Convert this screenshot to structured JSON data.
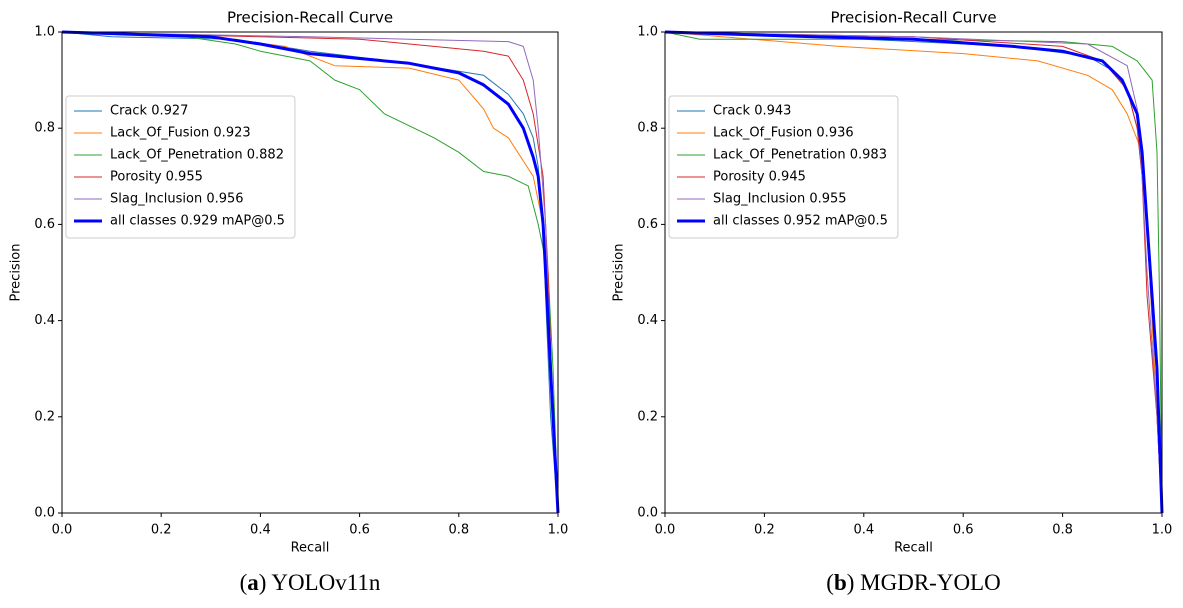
{
  "chart_data": [
    {
      "type": "line",
      "title": "Precision-Recall Curve",
      "x_label": "Recall",
      "y_label": "Precision",
      "caption": [
        "(",
        "a",
        ") YOLOv11n"
      ],
      "xlim": [
        0,
        1
      ],
      "ylim": [
        0,
        1
      ],
      "xticks": [
        {
          "value": 0,
          "label": "0.0"
        },
        0.2,
        0.4,
        0.6,
        0.8,
        {
          "value": 1,
          "label": "1.0"
        }
      ],
      "yticks": [
        {
          "value": 0,
          "label": "0.0"
        },
        0.2,
        0.4,
        0.6,
        0.8,
        {
          "value": 1,
          "label": "1.0"
        }
      ],
      "legend": "upper left",
      "series": [
        {
          "name": "Crack 0.927",
          "color": "#1f77b4",
          "width": 1,
          "x": [
            0,
            0.1,
            0.35,
            0.5,
            0.7,
            0.85,
            0.9,
            0.93,
            0.95,
            0.96,
            0.97,
            0.975,
            0.985,
            1.0
          ],
          "values": [
            1,
            0.99,
            0.985,
            0.96,
            0.935,
            0.91,
            0.87,
            0.83,
            0.78,
            0.72,
            0.6,
            0.45,
            0.2,
            0
          ]
        },
        {
          "name": "Lack_Of_Fusion 0.923",
          "color": "#ff7f0e",
          "width": 1,
          "x": [
            0,
            0.3,
            0.45,
            0.5,
            0.55,
            0.7,
            0.8,
            0.85,
            0.87,
            0.9,
            0.95,
            0.97,
            0.98,
            0.99,
            1.0
          ],
          "values": [
            1,
            0.99,
            0.97,
            0.95,
            0.93,
            0.925,
            0.9,
            0.84,
            0.8,
            0.78,
            0.7,
            0.6,
            0.4,
            0.2,
            0
          ]
        },
        {
          "name": "Lack_Of_Penetration 0.882",
          "color": "#2ca02c",
          "width": 1,
          "x": [
            0,
            0.25,
            0.35,
            0.4,
            0.5,
            0.55,
            0.6,
            0.65,
            0.75,
            0.8,
            0.85,
            0.9,
            0.94,
            0.96,
            0.98,
            0.99,
            1.0
          ],
          "values": [
            1,
            0.99,
            0.975,
            0.96,
            0.94,
            0.9,
            0.88,
            0.83,
            0.78,
            0.75,
            0.71,
            0.7,
            0.68,
            0.6,
            0.5,
            0.3,
            0
          ]
        },
        {
          "name": "Porosity 0.955",
          "color": "#d62728",
          "width": 1,
          "x": [
            0,
            0.4,
            0.6,
            0.75,
            0.85,
            0.9,
            0.93,
            0.95,
            0.97,
            0.98,
            0.99,
            1.0
          ],
          "values": [
            1,
            0.99,
            0.985,
            0.97,
            0.96,
            0.95,
            0.9,
            0.83,
            0.7,
            0.5,
            0.2,
            0
          ]
        },
        {
          "name": "Slag_Inclusion 0.956",
          "color": "#9467bd",
          "width": 1,
          "x": [
            0,
            0.5,
            0.7,
            0.9,
            0.93,
            0.95,
            0.96,
            0.975,
            0.985,
            1.0
          ],
          "values": [
            1,
            0.99,
            0.985,
            0.98,
            0.97,
            0.9,
            0.8,
            0.6,
            0.3,
            0
          ]
        },
        {
          "name": "all classes 0.929 mAP@0.5",
          "color": "#0000ff",
          "width": 3,
          "x": [
            0,
            0.3,
            0.4,
            0.5,
            0.6,
            0.7,
            0.8,
            0.85,
            0.9,
            0.93,
            0.95,
            0.96,
            0.97,
            0.98,
            0.99,
            1.0
          ],
          "values": [
            1,
            0.99,
            0.975,
            0.955,
            0.945,
            0.935,
            0.915,
            0.89,
            0.85,
            0.8,
            0.74,
            0.7,
            0.6,
            0.4,
            0.2,
            0
          ]
        }
      ]
    },
    {
      "type": "line",
      "title": "Precision-Recall Curve",
      "x_label": "Recall",
      "y_label": "Precision",
      "caption": [
        "(",
        "b",
        ") MGDR-YOLO"
      ],
      "xlim": [
        0,
        1
      ],
      "ylim": [
        0,
        1
      ],
      "xticks": [
        {
          "value": 0,
          "label": "0.0"
        },
        0.2,
        0.4,
        0.6,
        0.8,
        {
          "value": 1,
          "label": "1.0"
        }
      ],
      "yticks": [
        {
          "value": 0,
          "label": "0.0"
        },
        0.2,
        0.4,
        0.6,
        0.8,
        {
          "value": 1,
          "label": "1.0"
        }
      ],
      "legend": "upper left",
      "series": [
        {
          "name": "Crack 0.943",
          "color": "#1f77b4",
          "width": 1,
          "x": [
            0,
            0.4,
            0.7,
            0.85,
            0.9,
            0.93,
            0.95,
            0.97,
            0.98,
            1.0
          ],
          "values": [
            1,
            0.985,
            0.97,
            0.95,
            0.92,
            0.88,
            0.8,
            0.6,
            0.4,
            0
          ]
        },
        {
          "name": "Lack_Of_Fusion 0.936",
          "color": "#ff7f0e",
          "width": 1,
          "x": [
            0,
            0.35,
            0.6,
            0.75,
            0.85,
            0.9,
            0.93,
            0.96,
            0.97,
            0.98,
            1.0
          ],
          "values": [
            1,
            0.97,
            0.955,
            0.94,
            0.91,
            0.88,
            0.83,
            0.75,
            0.6,
            0.4,
            0
          ]
        },
        {
          "name": "Lack_Of_Penetration 0.983",
          "color": "#2ca02c",
          "width": 1,
          "x": [
            0,
            0.07,
            0.5,
            0.8,
            0.9,
            0.95,
            0.98,
            0.99,
            0.995,
            1.0
          ],
          "values": [
            1,
            0.985,
            0.985,
            0.98,
            0.97,
            0.94,
            0.9,
            0.75,
            0.45,
            0
          ]
        },
        {
          "name": "Porosity 0.945",
          "color": "#d62728",
          "width": 1,
          "x": [
            0,
            0.5,
            0.8,
            0.88,
            0.93,
            0.95,
            0.96,
            0.97,
            0.99,
            1.0
          ],
          "values": [
            1,
            0.99,
            0.97,
            0.94,
            0.88,
            0.8,
            0.7,
            0.45,
            0.2,
            0
          ]
        },
        {
          "name": "Slag_Inclusion 0.955",
          "color": "#9467bd",
          "width": 1,
          "x": [
            0,
            0.5,
            0.85,
            0.93,
            0.95,
            0.96,
            0.97,
            0.99,
            1.0
          ],
          "values": [
            1,
            0.99,
            0.975,
            0.93,
            0.84,
            0.7,
            0.5,
            0.2,
            0
          ]
        },
        {
          "name": "all classes 0.952 mAP@0.5",
          "color": "#0000ff",
          "width": 3,
          "x": [
            0,
            0.3,
            0.5,
            0.7,
            0.8,
            0.88,
            0.92,
            0.95,
            0.96,
            0.97,
            0.98,
            0.99,
            1.0
          ],
          "values": [
            1,
            0.99,
            0.985,
            0.97,
            0.96,
            0.94,
            0.9,
            0.83,
            0.75,
            0.6,
            0.45,
            0.3,
            0
          ]
        }
      ]
    }
  ]
}
